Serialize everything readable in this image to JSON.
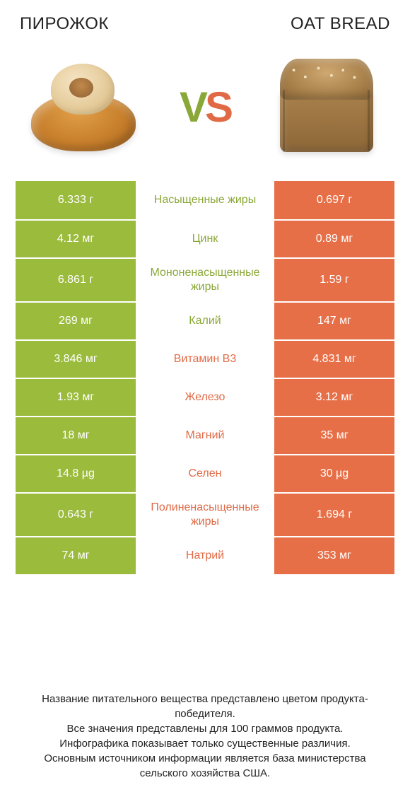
{
  "colors": {
    "green": "#9bbb3c",
    "orange": "#e76f47",
    "green_text": "#8aa838",
    "orange_text": "#e06a46",
    "row_border": "#ffffff",
    "background": "#ffffff",
    "text": "#222222"
  },
  "header": {
    "left": "ПИРОЖОК",
    "right": "OAT BREAD",
    "vs_v": "V",
    "vs_s": "S"
  },
  "comparison": {
    "type": "table",
    "columns": [
      "left_value",
      "nutrient",
      "right_value"
    ],
    "left_color": "#9bbb3c",
    "right_color": "#e76f47",
    "label_color_source": "winner",
    "rows": [
      {
        "left": "6.333 г",
        "label": "Насыщенные жиры",
        "right": "0.697 г",
        "winner": "left"
      },
      {
        "left": "4.12 мг",
        "label": "Цинк",
        "right": "0.89 мг",
        "winner": "left"
      },
      {
        "left": "6.861 г",
        "label": "Мононенасыщенные жиры",
        "right": "1.59 г",
        "winner": "left"
      },
      {
        "left": "269 мг",
        "label": "Калий",
        "right": "147 мг",
        "winner": "left"
      },
      {
        "left": "3.846 мг",
        "label": "Витамин B3",
        "right": "4.831 мг",
        "winner": "right"
      },
      {
        "left": "1.93 мг",
        "label": "Железо",
        "right": "3.12 мг",
        "winner": "right"
      },
      {
        "left": "18 мг",
        "label": "Магний",
        "right": "35 мг",
        "winner": "right"
      },
      {
        "left": "14.8 µg",
        "label": "Селен",
        "right": "30 µg",
        "winner": "right"
      },
      {
        "left": "0.643 г",
        "label": "Полиненасыщенные жиры",
        "right": "1.694 г",
        "winner": "right"
      },
      {
        "left": "74 мг",
        "label": "Натрий",
        "right": "353 мг",
        "winner": "right"
      }
    ]
  },
  "footer": {
    "line1": "Название питательного вещества представлено цветом продукта-победителя.",
    "line2": "Все значения представлены для 100 граммов продукта.",
    "line3": "Инфографика показывает только существенные различия.",
    "line4": "Основным источником информации является база министерства сельского хозяйства США."
  }
}
